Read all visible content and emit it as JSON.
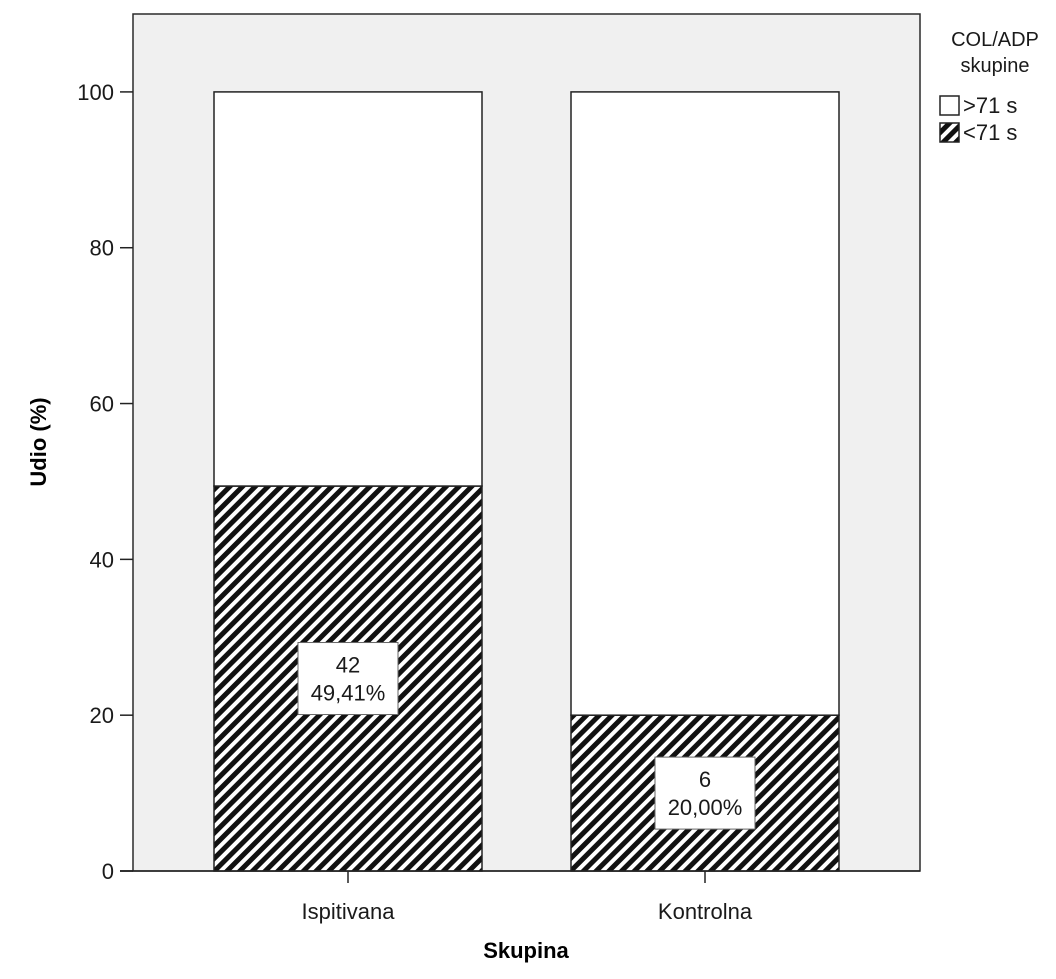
{
  "chart_data": {
    "type": "bar",
    "stacked": true,
    "categories": [
      "Ispitivana",
      "Kontrolna"
    ],
    "series": [
      {
        "name": "<71 s",
        "values": [
          49.41,
          20.0
        ],
        "pattern": "diagonal-hatch",
        "color": "#111111"
      },
      {
        "name": ">71 s",
        "values": [
          50.59,
          80.0
        ],
        "pattern": "none",
        "color": "#ffffff"
      }
    ],
    "data_labels": [
      {
        "category": "Ispitivana",
        "count": "42",
        "percent": "49,41%"
      },
      {
        "category": "Kontrolna",
        "count": "6",
        "percent": "20,00%"
      }
    ],
    "xlabel": "Skupina",
    "ylabel": "Udio (%)",
    "ylim": [
      0,
      110
    ],
    "yticks": [
      0,
      20,
      40,
      60,
      80,
      100
    ],
    "ytick_labels": [
      "0",
      "20",
      "40",
      "60",
      "80",
      "100"
    ],
    "legend": {
      "title_line1": "COL/ADP",
      "title_line2": "skupine",
      "placement": "top-right outside",
      "items": [
        {
          "label": ">71 s",
          "pattern": "none"
        },
        {
          "label": "<71 s",
          "pattern": "diagonal-hatch"
        }
      ]
    },
    "plot_background": "#f0f0f0",
    "grid": false
  }
}
